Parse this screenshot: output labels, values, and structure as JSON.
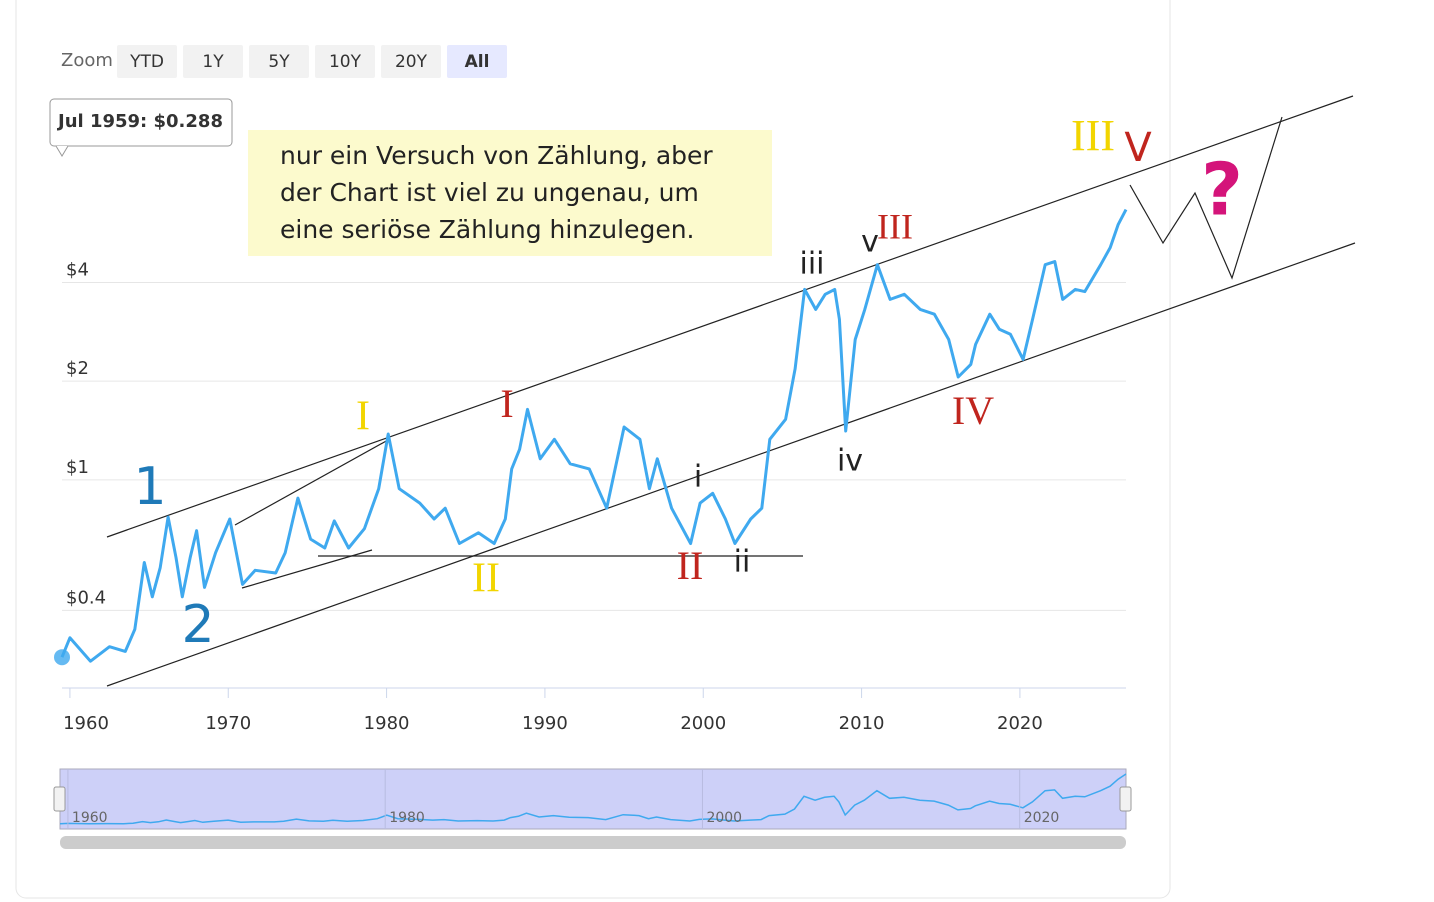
{
  "zoom": {
    "label": "Zoom",
    "buttons": [
      "YTD",
      "1Y",
      "5Y",
      "10Y",
      "20Y",
      "All"
    ],
    "selected": 5
  },
  "tooltip": "Jul 1959: $0.288",
  "note": [
    "nur ein Versuch von Zählung, aber",
    "der Chart ist viel zu ungenau, um",
    "eine seriöse Zählung hinzulegen."
  ],
  "chart_data": {
    "type": "line",
    "log_scale": true,
    "grid": true,
    "x": [
      1959.5,
      1960,
      1961.3,
      1962.5,
      1963.5,
      1964.1,
      1964.7,
      1965.2,
      1965.7,
      1966.2,
      1966.7,
      1967.1,
      1967.6,
      1968,
      1968.5,
      1969.2,
      1970.1,
      1970.9,
      1971.7,
      1973,
      1973.6,
      1974.4,
      1975.2,
      1976.1,
      1976.7,
      1977.6,
      1978.6,
      1979.5,
      1980.1,
      1980.8,
      1982.1,
      1983,
      1983.7,
      1984.6,
      1985.8,
      1986.8,
      1987.5,
      1987.9,
      1988.4,
      1988.9,
      1989.7,
      1990.6,
      1991.6,
      1992.8,
      1993.9,
      1995,
      1996,
      1996.6,
      1997.1,
      1998,
      1999.2,
      1999.8,
      2000.6,
      2001.4,
      2002,
      2003,
      2003.7,
      2004.2,
      2005.2,
      2005.8,
      2006.4,
      2007.1,
      2007.7,
      2008.3,
      2008.6,
      2009,
      2009.6,
      2010.2,
      2011,
      2011.8,
      2012.7,
      2013.7,
      2014.6,
      2015.5,
      2016.1,
      2016.9,
      2017.2,
      2018.1,
      2018.7,
      2019.4,
      2020.2,
      2020.8,
      2021.6,
      2022.2,
      2022.7,
      2023.5,
      2024.1,
      2025.1,
      2025.7,
      2026.2,
      2026.7
    ],
    "series": [
      {
        "color": "#3fa9ef",
        "values": [
          0.288,
          0.33,
          0.28,
          0.31,
          0.3,
          0.35,
          0.56,
          0.44,
          0.54,
          0.77,
          0.58,
          0.44,
          0.58,
          0.7,
          0.47,
          0.6,
          0.76,
          0.48,
          0.53,
          0.52,
          0.6,
          0.88,
          0.66,
          0.62,
          0.75,
          0.62,
          0.71,
          0.94,
          1.38,
          0.94,
          0.85,
          0.76,
          0.82,
          0.64,
          0.69,
          0.64,
          0.76,
          1.08,
          1.24,
          1.64,
          1.16,
          1.33,
          1.12,
          1.08,
          0.82,
          1.45,
          1.33,
          0.94,
          1.16,
          0.82,
          0.64,
          0.85,
          0.91,
          0.76,
          0.64,
          0.76,
          0.82,
          1.33,
          1.53,
          2.18,
          3.81,
          3.31,
          3.68,
          3.81,
          3.09,
          1.41,
          2.68,
          3.31,
          4.53,
          3.55,
          3.68,
          3.31,
          3.2,
          2.68,
          2.06,
          2.25,
          2.59,
          3.2,
          2.88,
          2.78,
          2.33,
          3.09,
          4.53,
          4.63,
          3.55,
          3.81,
          3.75,
          4.53,
          5.11,
          6.0,
          6.67
        ]
      }
    ],
    "xlim": [
      1959.5,
      2026.7
    ],
    "xticks": [
      1960,
      1970,
      1980,
      1990,
      2000,
      2010,
      2020
    ],
    "ylim": [
      0.232,
      14.4
    ],
    "yticks": [
      {
        "value": 0.4,
        "label": "$0.4"
      },
      {
        "value": 1,
        "label": "$1"
      },
      {
        "value": 2,
        "label": "$2"
      },
      {
        "value": 4,
        "label": "$4"
      }
    ],
    "navigator_ticks": [
      1960,
      1980,
      2000,
      2020
    ],
    "annotations": [
      {
        "text": "1",
        "color": "#1f7ab8"
      },
      {
        "text": "2",
        "color": "#1f7ab8"
      },
      {
        "text": "I",
        "color": "#f2d500"
      },
      {
        "text": "II",
        "color": "#f2d500"
      },
      {
        "text": "I",
        "color": "#c0251e"
      },
      {
        "text": "II",
        "color": "#c0251e"
      },
      {
        "text": "i",
        "color": "#222222"
      },
      {
        "text": "ii",
        "color": "#222222"
      },
      {
        "text": "iii",
        "color": "#222222"
      },
      {
        "text": "iv",
        "color": "#222222"
      },
      {
        "text": "v",
        "color": "#222222"
      },
      {
        "text": "III",
        "color": "#c0251e"
      },
      {
        "text": "IV",
        "color": "#c0251e"
      },
      {
        "text": "III",
        "color": "#f2d500"
      },
      {
        "text": "V",
        "color": "#c0251e"
      },
      {
        "text": "?",
        "color": "#d4147a"
      }
    ]
  }
}
